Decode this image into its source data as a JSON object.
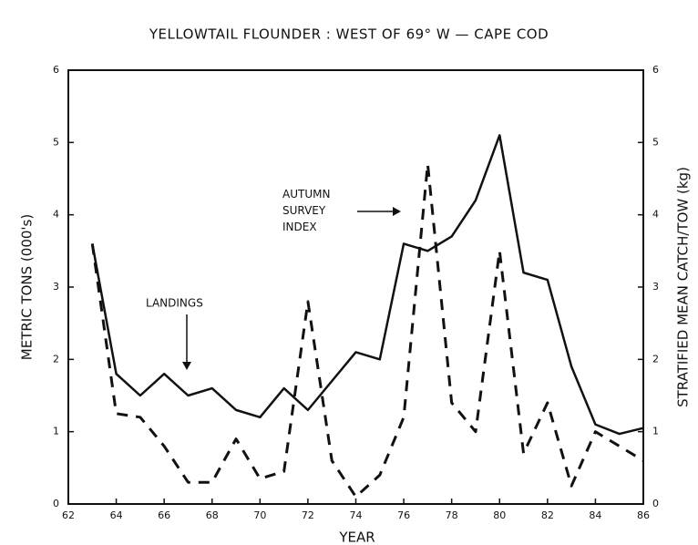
{
  "chart_data": {
    "type": "line",
    "title": "YELLOWTAIL FLOUNDER : WEST OF 69° W — CAPE COD",
    "xlabel": "YEAR",
    "ylabel": "METRIC TONS (000's)",
    "y2label": "STRATIFIED MEAN CATCH/TOW (kg)",
    "x": [
      63,
      64,
      65,
      66,
      67,
      68,
      69,
      70,
      71,
      72,
      73,
      74,
      75,
      76,
      77,
      78,
      79,
      80,
      81,
      82,
      83,
      84,
      85,
      86
    ],
    "series": [
      {
        "name": "LANDINGS",
        "color": "#111111",
        "dash": false,
        "values": [
          3.6,
          1.8,
          1.5,
          1.8,
          1.5,
          1.6,
          1.3,
          1.2,
          1.6,
          1.3,
          1.7,
          2.1,
          2.0,
          3.6,
          3.5,
          3.7,
          4.2,
          5.1,
          3.2,
          3.1,
          1.9,
          1.1,
          0.97,
          1.05
        ]
      },
      {
        "name": "AUTUMN SURVEY INDEX",
        "color": "#111111",
        "dash": true,
        "axis": "y2",
        "values": [
          3.6,
          1.25,
          1.2,
          0.8,
          0.3,
          0.3,
          0.9,
          0.35,
          0.45,
          2.8,
          0.6,
          0.1,
          0.4,
          1.2,
          4.7,
          1.4,
          1.0,
          3.5,
          0.7,
          1.4,
          0.25,
          1.0,
          0.8,
          0.6
        ]
      }
    ],
    "xlim": [
      62,
      86
    ],
    "xticks": [
      62,
      64,
      66,
      68,
      70,
      72,
      74,
      76,
      78,
      80,
      82,
      84,
      86
    ],
    "ylim": [
      0,
      6
    ],
    "yticks": [
      0,
      1,
      2,
      3,
      4,
      5,
      6
    ],
    "y2lim": [
      0,
      6
    ],
    "y2ticks": [
      0,
      1,
      2,
      3,
      4,
      5,
      6
    ]
  }
}
